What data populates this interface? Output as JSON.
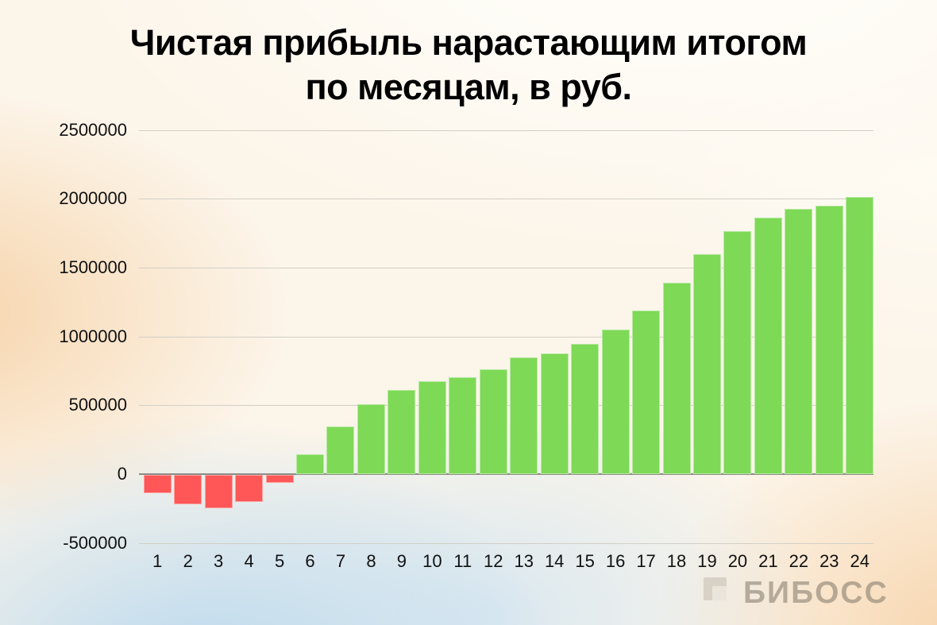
{
  "page": {
    "title_line1": "Чистая прибыль нарастающим итогом",
    "title_line2": "по месяцам, в руб."
  },
  "watermark": {
    "brand": "БИБОСС",
    "icon": "biboss-logo-square"
  },
  "chart_data": {
    "type": "bar",
    "title": "Чистая прибыль нарастающим итогом по месяцам, в руб.",
    "xlabel": "",
    "ylabel": "",
    "categories": [
      "1",
      "2",
      "3",
      "4",
      "5",
      "6",
      "7",
      "8",
      "9",
      "10",
      "11",
      "12",
      "13",
      "14",
      "15",
      "16",
      "17",
      "18",
      "19",
      "20",
      "21",
      "22",
      "23",
      "24"
    ],
    "values": [
      -130000,
      -215000,
      -245000,
      -195000,
      -55000,
      145000,
      345000,
      510000,
      610000,
      675000,
      705000,
      760000,
      850000,
      875000,
      945000,
      1050000,
      1190000,
      1390000,
      1595000,
      1765000,
      1865000,
      1925000,
      1950000,
      2015000
    ],
    "ylim": [
      -500000,
      2500000
    ],
    "ytick_step": 500000,
    "ytick_labels": [
      "-500000",
      "0",
      "500000",
      "1000000",
      "1500000",
      "2000000",
      "2500000"
    ],
    "grid": true,
    "legend": "none",
    "bar_color_positive": "#7ed957",
    "bar_color_negative": "#ff5757",
    "gridline_color": "#d2cfc7",
    "zeroline_color": "#8d8d87"
  }
}
